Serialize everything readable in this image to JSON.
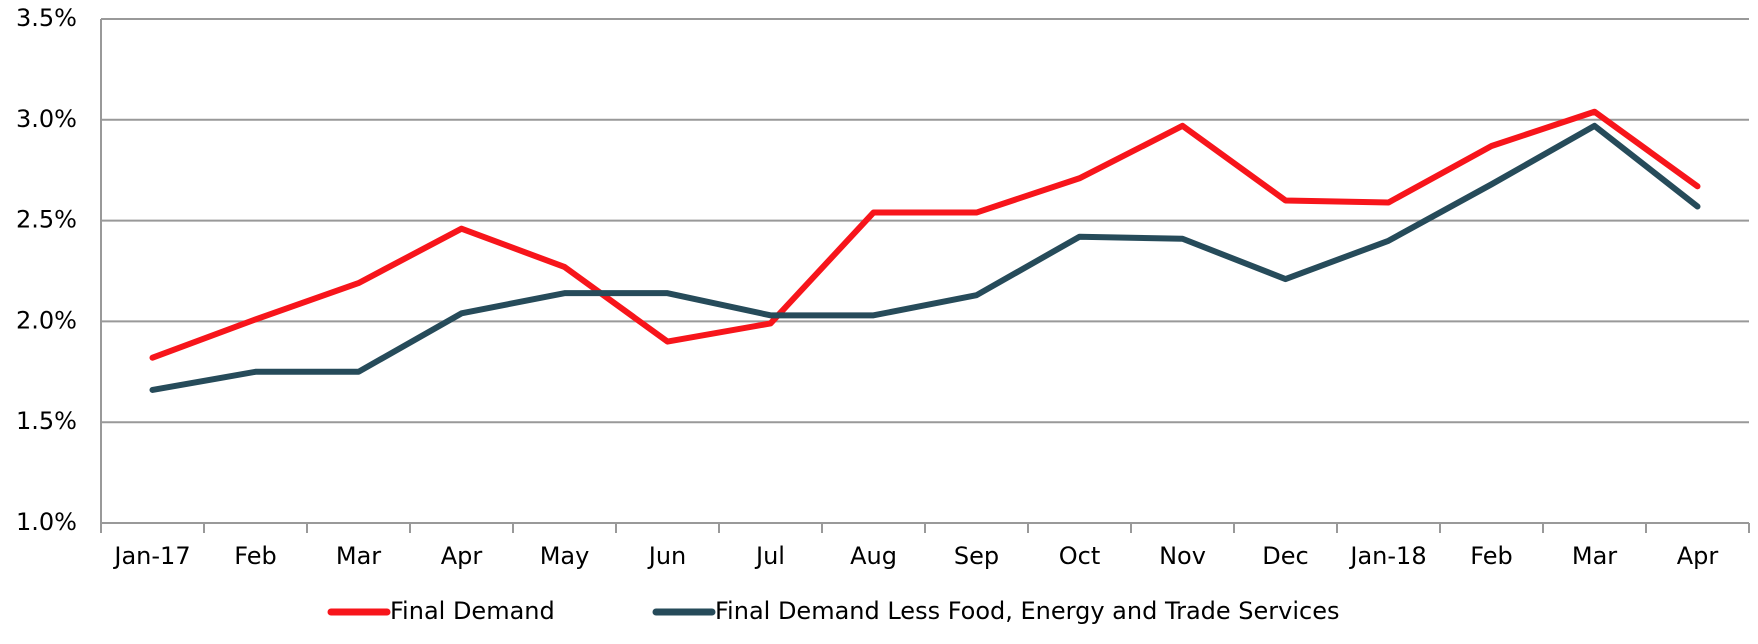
{
  "chart_data": {
    "type": "line",
    "categories": [
      "Jan-17",
      "Feb",
      "Mar",
      "Apr",
      "May",
      "Jun",
      "Jul",
      "Aug",
      "Sep",
      "Oct",
      "Nov",
      "Dec",
      "Jan-18",
      "Feb",
      "Mar",
      "Apr"
    ],
    "series": [
      {
        "name": "Final Demand",
        "color": "#f7151b",
        "values": [
          1.82,
          2.01,
          2.19,
          2.46,
          2.27,
          1.9,
          1.99,
          2.54,
          2.54,
          2.71,
          2.97,
          2.6,
          2.59,
          2.87,
          3.04,
          2.67
        ]
      },
      {
        "name": "Final Demand Less Food, Energy and Trade Services",
        "color": "#264b5a",
        "values": [
          1.66,
          1.75,
          1.75,
          2.04,
          2.14,
          2.14,
          2.03,
          2.03,
          2.13,
          2.42,
          2.41,
          2.21,
          2.4,
          2.68,
          2.97,
          2.57
        ]
      }
    ],
    "ylim": [
      1.0,
      3.5
    ],
    "yticks": [
      {
        "value": 1.0,
        "label": "1.0%"
      },
      {
        "value": 1.5,
        "label": "1.5%"
      },
      {
        "value": 2.0,
        "label": "2.0%"
      },
      {
        "value": 2.5,
        "label": "2.5%"
      },
      {
        "value": 3.0,
        "label": "3.0%"
      },
      {
        "value": 3.5,
        "label": "3.5%"
      }
    ],
    "grid": true,
    "legend": "bottom"
  }
}
